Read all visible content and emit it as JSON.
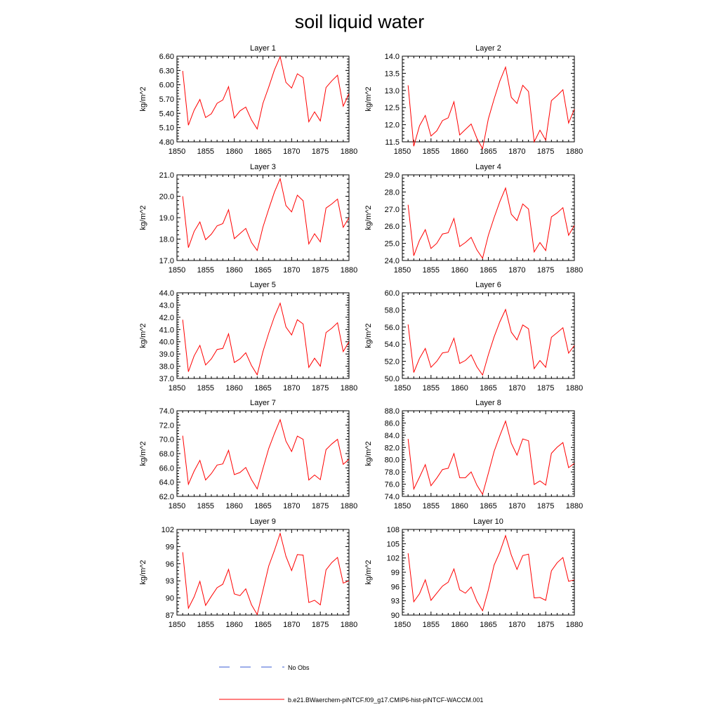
{
  "figure": {
    "title": "soil liquid water",
    "legend": [
      {
        "label": "No Obs",
        "color": "#3b5bd6",
        "style": "dashed"
      },
      {
        "label": "b.e21.BWaerchem-piNTCF.f09_g17.CMIP6-hist-piNTCF-WACCM.001",
        "color": "#ff0000",
        "style": "solid"
      }
    ]
  },
  "chart_data": [
    {
      "type": "line",
      "title": "Layer 1",
      "ylabel": "kg/m^2",
      "xlim": [
        1850,
        1880
      ],
      "ylim": [
        4.8,
        6.6
      ],
      "yticks": [
        "4.80",
        "5.10",
        "5.40",
        "5.70",
        "6.00",
        "6.30",
        "6.60"
      ],
      "xticks": [
        "1850",
        "1855",
        "1860",
        "1865",
        "1870",
        "1875",
        "1880"
      ],
      "x": [
        1851,
        1852,
        1853,
        1854,
        1855,
        1856,
        1857,
        1858,
        1859,
        1860,
        1861,
        1862,
        1863,
        1864,
        1865,
        1866,
        1867,
        1868,
        1869,
        1870,
        1871,
        1872,
        1873,
        1874,
        1875,
        1876,
        1877,
        1878,
        1879,
        1880
      ],
      "series": [
        {
          "color": "#ff0000",
          "values": [
            6.29,
            5.15,
            5.47,
            5.69,
            5.31,
            5.39,
            5.61,
            5.68,
            5.96,
            5.3,
            5.45,
            5.53,
            5.26,
            5.07,
            5.61,
            5.95,
            6.31,
            6.59,
            6.05,
            5.93,
            6.23,
            6.15,
            5.22,
            5.43,
            5.24,
            5.94,
            6.08,
            6.2,
            5.55,
            5.81
          ]
        }
      ]
    },
    {
      "type": "line",
      "title": "Layer 2",
      "ylabel": "kg/m^2",
      "xlim": [
        1850,
        1880
      ],
      "ylim": [
        11.5,
        14.0
      ],
      "yticks": [
        "11.5",
        "12.0",
        "12.5",
        "13.0",
        "13.5",
        "14.0"
      ],
      "xticks": [
        "1850",
        "1855",
        "1860",
        "1865",
        "1870",
        "1875",
        "1880"
      ],
      "x": [
        1851,
        1852,
        1853,
        1854,
        1855,
        1856,
        1857,
        1858,
        1859,
        1860,
        1861,
        1862,
        1863,
        1864,
        1865,
        1866,
        1867,
        1868,
        1869,
        1870,
        1871,
        1872,
        1873,
        1874,
        1875,
        1876,
        1877,
        1878,
        1879,
        1880
      ],
      "series": [
        {
          "color": "#ff0000",
          "values": [
            13.15,
            11.37,
            11.97,
            12.27,
            11.67,
            11.82,
            12.12,
            12.2,
            12.67,
            11.7,
            11.86,
            12.02,
            11.6,
            11.3,
            12.17,
            12.75,
            13.27,
            13.68,
            12.8,
            12.62,
            13.15,
            12.97,
            11.5,
            11.84,
            11.55,
            12.7,
            12.85,
            13.02,
            12.05,
            12.45
          ]
        }
      ]
    },
    {
      "type": "line",
      "title": "Layer 3",
      "ylabel": "kg/m^2",
      "xlim": [
        1850,
        1880
      ],
      "ylim": [
        17.0,
        21.0
      ],
      "yticks": [
        "17.0",
        "18.0",
        "19.0",
        "20.0",
        "21.0"
      ],
      "xticks": [
        "1850",
        "1855",
        "1860",
        "1865",
        "1870",
        "1875",
        "1880"
      ],
      "x": [
        1851,
        1852,
        1853,
        1854,
        1855,
        1856,
        1857,
        1858,
        1859,
        1860,
        1861,
        1862,
        1863,
        1864,
        1865,
        1866,
        1867,
        1868,
        1869,
        1870,
        1871,
        1872,
        1873,
        1874,
        1875,
        1876,
        1877,
        1878,
        1879,
        1880
      ],
      "series": [
        {
          "color": "#ff0000",
          "values": [
            20.0,
            17.6,
            18.35,
            18.8,
            17.97,
            18.23,
            18.62,
            18.72,
            19.37,
            18.02,
            18.26,
            18.5,
            17.84,
            17.47,
            18.56,
            19.4,
            20.19,
            20.82,
            19.57,
            19.27,
            20.05,
            19.79,
            17.77,
            18.25,
            17.87,
            19.45,
            19.64,
            19.87,
            18.55,
            19.0
          ]
        }
      ]
    },
    {
      "type": "line",
      "title": "Layer 4",
      "ylabel": "kg/m^2",
      "xlim": [
        1850,
        1880
      ],
      "ylim": [
        24.0,
        29.0
      ],
      "yticks": [
        "24.0",
        "25.0",
        "26.0",
        "27.0",
        "28.0",
        "29.0"
      ],
      "xticks": [
        "1850",
        "1855",
        "1860",
        "1865",
        "1870",
        "1875",
        "1880"
      ],
      "x": [
        1851,
        1852,
        1853,
        1854,
        1855,
        1856,
        1857,
        1858,
        1859,
        1860,
        1861,
        1862,
        1863,
        1864,
        1865,
        1866,
        1867,
        1868,
        1869,
        1870,
        1871,
        1872,
        1873,
        1874,
        1875,
        1876,
        1877,
        1878,
        1879,
        1880
      ],
      "series": [
        {
          "color": "#ff0000",
          "values": [
            27.25,
            24.28,
            25.18,
            25.8,
            24.7,
            25.0,
            25.55,
            25.62,
            26.45,
            24.82,
            25.05,
            25.35,
            24.62,
            24.13,
            25.47,
            26.5,
            27.43,
            28.23,
            26.7,
            26.33,
            27.3,
            27.0,
            24.5,
            25.05,
            24.58,
            26.55,
            26.78,
            27.08,
            25.47,
            26.05
          ]
        }
      ]
    },
    {
      "type": "line",
      "title": "Layer 5",
      "ylabel": "kg/m^2",
      "xlim": [
        1850,
        1880
      ],
      "ylim": [
        37.0,
        44.0
      ],
      "yticks": [
        "37.0",
        "38.0",
        "39.0",
        "40.0",
        "41.0",
        "42.0",
        "43.0",
        "44.0"
      ],
      "xticks": [
        "1850",
        "1855",
        "1860",
        "1865",
        "1870",
        "1875",
        "1880"
      ],
      "x": [
        1851,
        1852,
        1853,
        1854,
        1855,
        1856,
        1857,
        1858,
        1859,
        1860,
        1861,
        1862,
        1863,
        1864,
        1865,
        1866,
        1867,
        1868,
        1869,
        1870,
        1871,
        1872,
        1873,
        1874,
        1875,
        1876,
        1877,
        1878,
        1879,
        1880
      ],
      "series": [
        {
          "color": "#ff0000",
          "values": [
            41.8,
            37.55,
            38.85,
            39.7,
            38.1,
            38.6,
            39.37,
            39.45,
            40.65,
            38.3,
            38.6,
            39.1,
            38.05,
            37.3,
            39.2,
            40.7,
            42.05,
            43.15,
            41.2,
            40.55,
            41.8,
            41.45,
            37.9,
            38.65,
            38.0,
            40.75,
            41.1,
            41.55,
            39.2,
            40.0
          ]
        }
      ]
    },
    {
      "type": "line",
      "title": "Layer 6",
      "ylabel": "kg/m^2",
      "xlim": [
        1850,
        1880
      ],
      "ylim": [
        50.0,
        60.0
      ],
      "yticks": [
        "50.0",
        "52.0",
        "54.0",
        "56.0",
        "58.0",
        "60.0"
      ],
      "xticks": [
        "1850",
        "1855",
        "1860",
        "1865",
        "1870",
        "1875",
        "1880"
      ],
      "x": [
        1851,
        1852,
        1853,
        1854,
        1855,
        1856,
        1857,
        1858,
        1859,
        1860,
        1861,
        1862,
        1863,
        1864,
        1865,
        1866,
        1867,
        1868,
        1869,
        1870,
        1871,
        1872,
        1873,
        1874,
        1875,
        1876,
        1877,
        1878,
        1879,
        1880
      ],
      "series": [
        {
          "color": "#ff0000",
          "values": [
            56.3,
            50.7,
            52.35,
            53.5,
            51.3,
            52.0,
            52.98,
            53.1,
            54.7,
            51.75,
            52.1,
            52.75,
            51.35,
            50.4,
            52.75,
            54.85,
            56.6,
            58.05,
            55.4,
            54.5,
            56.25,
            55.8,
            51.15,
            52.1,
            51.3,
            54.8,
            55.35,
            55.92,
            52.95,
            53.85
          ]
        }
      ]
    },
    {
      "type": "line",
      "title": "Layer 7",
      "ylabel": "kg/m^2",
      "xlim": [
        1850,
        1880
      ],
      "ylim": [
        62.0,
        74.0
      ],
      "yticks": [
        "62.0",
        "64.0",
        "66.0",
        "68.0",
        "70.0",
        "72.0",
        "74.0"
      ],
      "xticks": [
        "1850",
        "1855",
        "1860",
        "1865",
        "1870",
        "1875",
        "1880"
      ],
      "x": [
        1851,
        1852,
        1853,
        1854,
        1855,
        1856,
        1857,
        1858,
        1859,
        1860,
        1861,
        1862,
        1863,
        1864,
        1865,
        1866,
        1867,
        1868,
        1869,
        1870,
        1871,
        1872,
        1873,
        1874,
        1875,
        1876,
        1877,
        1878,
        1879,
        1880
      ],
      "series": [
        {
          "color": "#ff0000",
          "values": [
            70.5,
            63.7,
            65.55,
            67.05,
            64.3,
            65.2,
            66.4,
            66.55,
            68.45,
            65.05,
            65.35,
            66.05,
            64.35,
            63.05,
            65.9,
            68.7,
            70.8,
            72.75,
            69.75,
            68.3,
            70.45,
            70.0,
            64.3,
            65.0,
            64.35,
            68.55,
            69.35,
            70.0,
            66.5,
            67.2
          ]
        }
      ]
    },
    {
      "type": "line",
      "title": "Layer 8",
      "ylabel": "kg/m^2",
      "xlim": [
        1850,
        1880
      ],
      "ylim": [
        74.0,
        88.0
      ],
      "yticks": [
        "74.0",
        "76.0",
        "78.0",
        "80.0",
        "82.0",
        "84.0",
        "86.0",
        "88.0"
      ],
      "xticks": [
        "1850",
        "1855",
        "1860",
        "1865",
        "1870",
        "1875",
        "1880"
      ],
      "x": [
        1851,
        1852,
        1853,
        1854,
        1855,
        1856,
        1857,
        1858,
        1859,
        1860,
        1861,
        1862,
        1863,
        1864,
        1865,
        1866,
        1867,
        1868,
        1869,
        1870,
        1871,
        1872,
        1873,
        1874,
        1875,
        1876,
        1877,
        1878,
        1879,
        1880
      ],
      "series": [
        {
          "color": "#ff0000",
          "values": [
            83.4,
            75.2,
            77.15,
            79.2,
            75.75,
            77.0,
            78.4,
            78.6,
            81.0,
            77.05,
            77.05,
            78.0,
            75.85,
            74.35,
            77.8,
            81.35,
            83.9,
            86.3,
            82.7,
            80.75,
            83.4,
            83.1,
            75.95,
            76.55,
            75.85,
            81.05,
            82.05,
            82.8,
            78.7,
            79.4
          ]
        }
      ]
    },
    {
      "type": "line",
      "title": "Layer 9",
      "ylabel": "kg/m^2",
      "xlim": [
        1850,
        1880
      ],
      "ylim": [
        87,
        102
      ],
      "yticks": [
        "87",
        "90",
        "93",
        "96",
        "99",
        "102"
      ],
      "xticks": [
        "1850",
        "1855",
        "1860",
        "1865",
        "1870",
        "1875",
        "1880"
      ],
      "x": [
        1851,
        1852,
        1853,
        1854,
        1855,
        1856,
        1857,
        1858,
        1859,
        1860,
        1861,
        1862,
        1863,
        1864,
        1865,
        1866,
        1867,
        1868,
        1869,
        1870,
        1871,
        1872,
        1873,
        1874,
        1875,
        1876,
        1877,
        1878,
        1879,
        1880
      ],
      "series": [
        {
          "color": "#ff0000",
          "values": [
            98.0,
            88.2,
            90.2,
            92.9,
            88.7,
            90.3,
            91.8,
            92.4,
            95.0,
            90.7,
            90.4,
            91.6,
            88.8,
            87.1,
            91.3,
            95.6,
            98.3,
            101.3,
            97.3,
            94.8,
            97.6,
            97.5,
            89.2,
            89.6,
            88.8,
            94.9,
            96.2,
            97.1,
            92.6,
            93.0
          ]
        }
      ]
    },
    {
      "type": "line",
      "title": "Layer 10",
      "ylabel": "kg/m^2",
      "xlim": [
        1850,
        1880
      ],
      "ylim": [
        90,
        108
      ],
      "yticks": [
        "90",
        "93",
        "96",
        "99",
        "102",
        "105",
        "108"
      ],
      "xticks": [
        "1850",
        "1855",
        "1860",
        "1865",
        "1870",
        "1875",
        "1880"
      ],
      "x": [
        1851,
        1852,
        1853,
        1854,
        1855,
        1856,
        1857,
        1858,
        1859,
        1860,
        1861,
        1862,
        1863,
        1864,
        1865,
        1866,
        1867,
        1868,
        1869,
        1870,
        1871,
        1872,
        1873,
        1874,
        1875,
        1876,
        1877,
        1878,
        1879,
        1880
      ],
      "series": [
        {
          "color": "#ff0000",
          "values": [
            103.0,
            92.8,
            94.5,
            97.4,
            93.1,
            94.6,
            96.1,
            96.9,
            99.7,
            95.3,
            94.6,
            95.9,
            92.9,
            90.9,
            95.3,
            100.5,
            103.2,
            106.7,
            102.6,
            99.6,
            102.5,
            102.8,
            93.6,
            93.7,
            93.1,
            99.3,
            101.0,
            102.1,
            97.1,
            97.4
          ]
        }
      ]
    }
  ]
}
